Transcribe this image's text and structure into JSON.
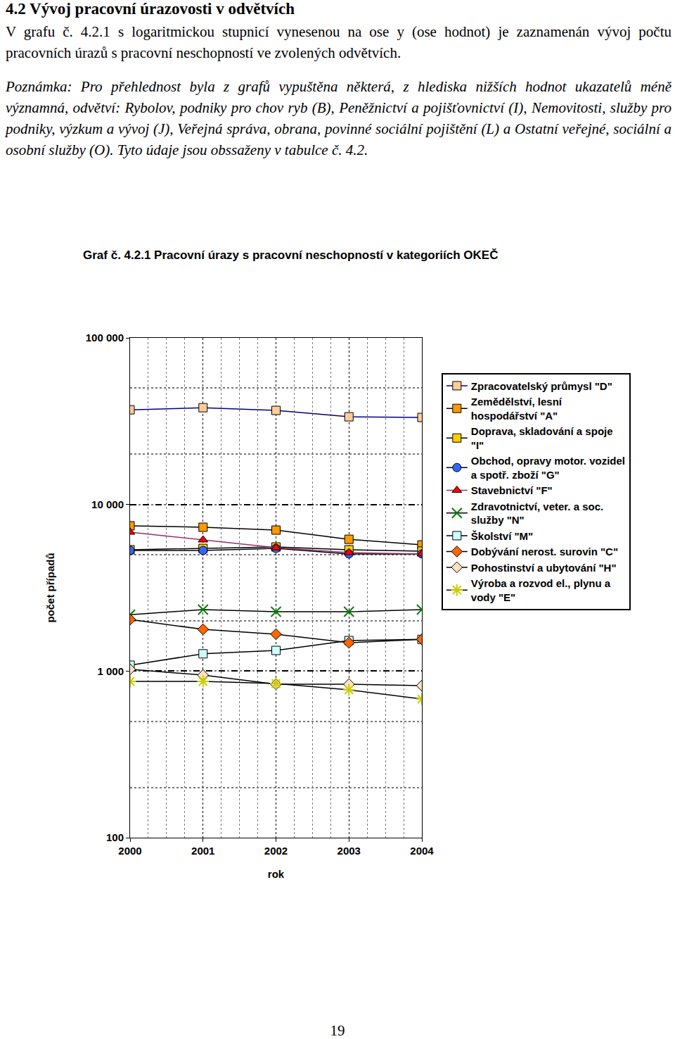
{
  "heading": "4.2 Vývoj pracovní úrazovosti v odvětvích",
  "paragraphs": [
    "V grafu č. 4.2.1 s logaritmickou stupnicí vynesenou na ose y (ose hodnot) je zaznamenán vývoj počtu pracovních úrazů s pracovní neschopností ve zvolených odvětvích.",
    "Poznámka: Pro přehlednost byla z grafů vypuštěna některá, z hlediska nižších hodnot ukazatelů méně významná, odvětví: Rybolov, podniky pro chov ryb (B), Peněžnictví a pojišťovnictví (I), Nemovitosti, služby pro podniky, výzkum a vývoj (J), Veřejná správa, obrana, povinné sociální pojištění (L) a Ostatní veřejné, sociální a osobní služby (O). Tyto údaje jsou obssaženy v tabulce č. 4.2."
  ],
  "chart_data": {
    "type": "line",
    "title": "Graf č. 4.2.1 Pracovní úrazy s pracovní neschopností v kategoriích OKEČ",
    "x_label": "rok",
    "y_label": "počet případů",
    "x": [
      2000,
      2001,
      2002,
      2003,
      2004
    ],
    "xlim": [
      2000,
      2004
    ],
    "xticks": [
      2000,
      2001,
      2002,
      2003,
      2004
    ],
    "log": "y",
    "ylim": [
      100,
      100000
    ],
    "yticks": [
      100,
      {
        "value": 1000,
        "label": "1 000"
      },
      {
        "value": 10000,
        "label": "10 000"
      },
      {
        "value": 100000,
        "label": "100 000"
      }
    ],
    "grid": true,
    "legend": "right",
    "series": [
      {
        "name": "Zpracovatelský průmysl \"D\"",
        "color": "#FFCC99",
        "marker": "square",
        "values": [
          37000,
          38100,
          36700,
          33600,
          33300
        ]
      },
      {
        "name": "Zemědělství, lesní hospodářství \"A\"",
        "color": "#FF9900",
        "marker": "square",
        "values": [
          7450,
          7300,
          7020,
          6180,
          5720
        ]
      },
      {
        "name": "Doprava, skladování a spoje \"I\"",
        "color": "#FFCC00",
        "marker": "square",
        "values": [
          5350,
          5450,
          5560,
          5350,
          5250
        ]
      },
      {
        "name": "Obchod, opravy motor. vozidel a spotř. zboží \"G\"",
        "color": "#3366FF",
        "marker": "circle",
        "values": [
          5300,
          5300,
          5450,
          5050,
          5050
        ]
      },
      {
        "name": "Stavebnictví \"F\"",
        "color": "#FF0000",
        "marker": "triangle-up",
        "values": [
          6820,
          6130,
          5500,
          5140,
          5050
        ]
      },
      {
        "name": "Zdravotnictví, veter. a soc. služby \"N\"",
        "color": "#008000",
        "marker": "x-thin-open",
        "values": [
          2180,
          2340,
          2270,
          2270,
          2340
        ]
      },
      {
        "name": "Školství \"M\"",
        "color": "#CCFFFF",
        "marker": "square",
        "values": [
          1085,
          1270,
          1330,
          1525,
          1550
        ]
      },
      {
        "name": "Dobývání nerost. surovin \"C\"",
        "color": "#FF6600",
        "marker": "diamond",
        "values": [
          2040,
          1780,
          1665,
          1480,
          1550
        ]
      },
      {
        "name": "Pohostinství a ubytování \"H\"",
        "color": "#FFE0C0",
        "marker": "diamond",
        "values": [
          1025,
          946,
          834,
          834,
          818
        ]
      },
      {
        "name": "Výroba a rozvod el., plynu a vody \"E\"",
        "color": "#CCCC00",
        "marker": "asterisk-open",
        "values": [
          867,
          867,
          842,
          771,
          679
        ]
      }
    ]
  },
  "page_number": "19"
}
